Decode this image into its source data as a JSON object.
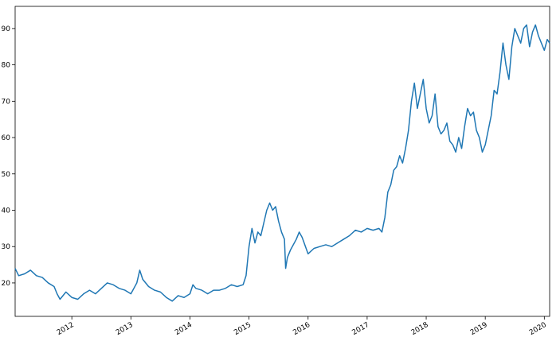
{
  "chart_data": {
    "type": "line",
    "color": "#1f77b4",
    "x": [
      2011.04,
      2011.1,
      2011.2,
      2011.3,
      2011.4,
      2011.5,
      2011.6,
      2011.7,
      2011.75,
      2011.8,
      2011.9,
      2012.0,
      2012.1,
      2012.2,
      2012.3,
      2012.4,
      2012.5,
      2012.6,
      2012.7,
      2012.8,
      2012.9,
      2013.0,
      2013.1,
      2013.15,
      2013.2,
      2013.3,
      2013.4,
      2013.5,
      2013.6,
      2013.7,
      2013.8,
      2013.9,
      2014.0,
      2014.05,
      2014.1,
      2014.2,
      2014.3,
      2014.4,
      2014.5,
      2014.6,
      2014.7,
      2014.8,
      2014.9,
      2014.95,
      2015.0,
      2015.05,
      2015.1,
      2015.15,
      2015.2,
      2015.3,
      2015.35,
      2015.4,
      2015.45,
      2015.5,
      2015.55,
      2015.6,
      2015.62,
      2015.65,
      2015.7,
      2015.8,
      2015.85,
      2015.9,
      2016.0,
      2016.1,
      2016.2,
      2016.3,
      2016.4,
      2016.5,
      2016.6,
      2016.7,
      2016.8,
      2016.9,
      2017.0,
      2017.1,
      2017.2,
      2017.25,
      2017.3,
      2017.35,
      2017.4,
      2017.45,
      2017.5,
      2017.55,
      2017.6,
      2017.65,
      2017.7,
      2017.75,
      2017.8,
      2017.85,
      2017.9,
      2017.95,
      2018.0,
      2018.05,
      2018.1,
      2018.15,
      2018.2,
      2018.25,
      2018.3,
      2018.35,
      2018.4,
      2018.45,
      2018.5,
      2018.55,
      2018.6,
      2018.65,
      2018.7,
      2018.75,
      2018.8,
      2018.85,
      2018.9,
      2018.95,
      2019.0,
      2019.05,
      2019.1,
      2019.15,
      2019.2,
      2019.25,
      2019.3,
      2019.35,
      2019.4,
      2019.45,
      2019.5,
      2019.55,
      2019.6,
      2019.65,
      2019.7,
      2019.75,
      2019.8,
      2019.85,
      2019.9,
      2019.95,
      2020.0,
      2020.05,
      2020.09
    ],
    "values": [
      24,
      22,
      22.5,
      23.5,
      22,
      21.5,
      20,
      19,
      17,
      15.5,
      17.5,
      16,
      15.5,
      17,
      18,
      17,
      18.5,
      20,
      19.5,
      18.5,
      18,
      17,
      20,
      23.5,
      21,
      19,
      18,
      17.5,
      16,
      15,
      16.5,
      16,
      17,
      19.5,
      18.5,
      18,
      17,
      18,
      18,
      18.5,
      19.5,
      19,
      19.5,
      22,
      30,
      35,
      31,
      34,
      33,
      40,
      42,
      40,
      41,
      37,
      34,
      32,
      24,
      27,
      29,
      32,
      34,
      32.5,
      28,
      29.5,
      30,
      30.5,
      30,
      31,
      32,
      33,
      34.5,
      34,
      35,
      34.5,
      35,
      34,
      38,
      45,
      47,
      51,
      52,
      55,
      53,
      57,
      62,
      70,
      75,
      68,
      72,
      76,
      68,
      64,
      66,
      72,
      63,
      61,
      62,
      64,
      59,
      58,
      56,
      60,
      57,
      63,
      68,
      66,
      67,
      62,
      60,
      56,
      58,
      62,
      66,
      73,
      72,
      78,
      86,
      80,
      76,
      85,
      90,
      88,
      86,
      90,
      91,
      85,
      89,
      91,
      88,
      86,
      84,
      87,
      86
    ],
    "xlim": [
      2011.04,
      2020.09
    ],
    "xticks": [
      2012,
      2013,
      2014,
      2015,
      2016,
      2017,
      2018,
      2019,
      2020
    ],
    "ylim": [
      10.8,
      96.1
    ],
    "yticks": [
      20,
      30,
      40,
      50,
      60,
      70,
      80,
      90
    ]
  }
}
